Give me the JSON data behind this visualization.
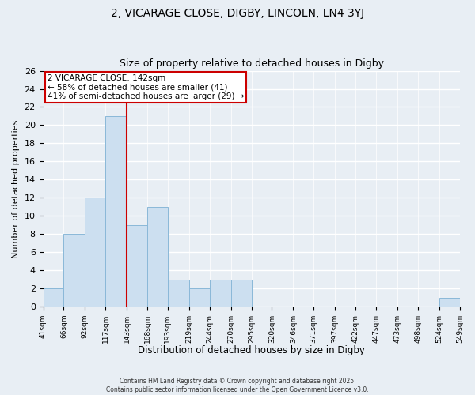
{
  "title": "2, VICARAGE CLOSE, DIGBY, LINCOLN, LN4 3YJ",
  "subtitle": "Size of property relative to detached houses in Digby",
  "xlabel": "Distribution of detached houses by size in Digby",
  "ylabel": "Number of detached properties",
  "bar_color": "#ccdff0",
  "bar_edge_color": "#8ab8d8",
  "background_color": "#e8eef4",
  "grid_color": "#ffffff",
  "bins": [
    41,
    66,
    92,
    117,
    143,
    168,
    193,
    219,
    244,
    270,
    295,
    320,
    346,
    371,
    397,
    422,
    447,
    473,
    498,
    524,
    549
  ],
  "bin_labels": [
    "41sqm",
    "66sqm",
    "92sqm",
    "117sqm",
    "143sqm",
    "168sqm",
    "193sqm",
    "219sqm",
    "244sqm",
    "270sqm",
    "295sqm",
    "320sqm",
    "346sqm",
    "371sqm",
    "397sqm",
    "422sqm",
    "447sqm",
    "473sqm",
    "498sqm",
    "524sqm",
    "549sqm"
  ],
  "counts": [
    2,
    8,
    12,
    21,
    9,
    11,
    3,
    2,
    3,
    3,
    0,
    0,
    0,
    0,
    0,
    0,
    0,
    0,
    0,
    1
  ],
  "vline_x": 143,
  "vline_color": "#cc0000",
  "ylim": [
    0,
    26
  ],
  "yticks": [
    0,
    2,
    4,
    6,
    8,
    10,
    12,
    14,
    16,
    18,
    20,
    22,
    24,
    26
  ],
  "annotation_title": "2 VICARAGE CLOSE: 142sqm",
  "annotation_line1": "← 58% of detached houses are smaller (41)",
  "annotation_line2": "41% of semi-detached houses are larger (29) →",
  "footer_line1": "Contains HM Land Registry data © Crown copyright and database right 2025.",
  "footer_line2": "Contains public sector information licensed under the Open Government Licence v3.0."
}
